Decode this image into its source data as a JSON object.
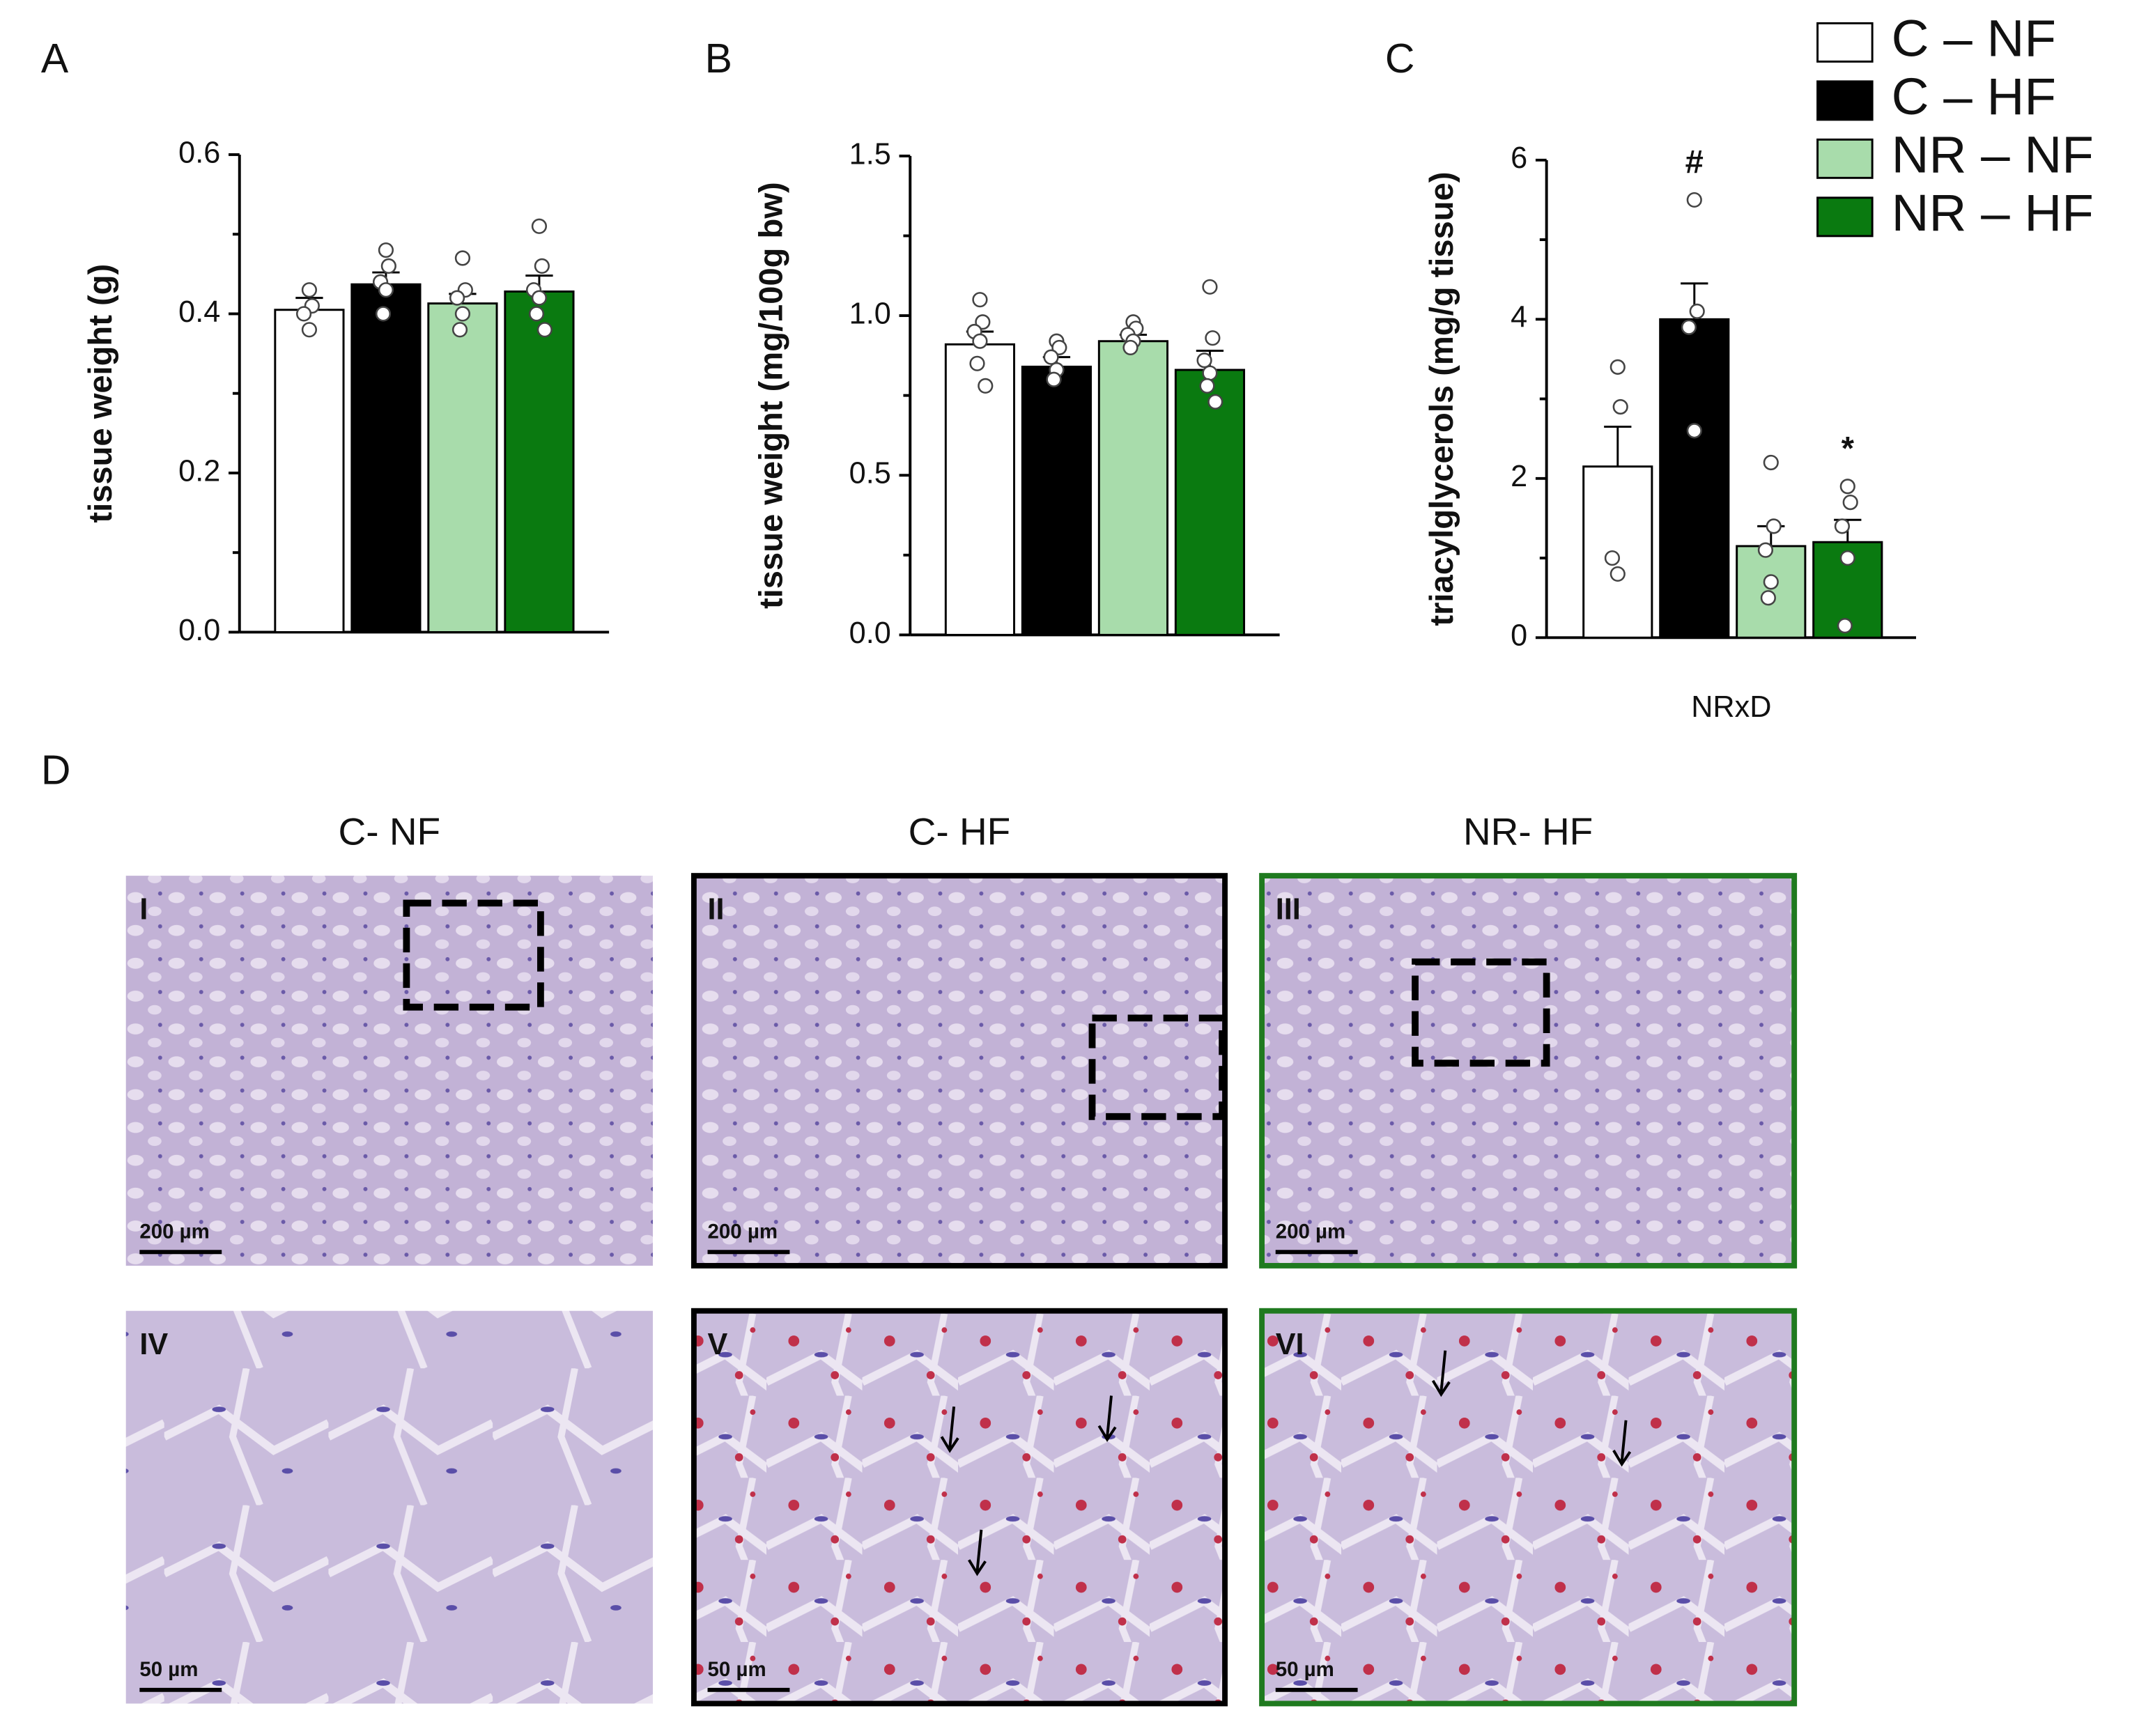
{
  "chart_data": [
    {
      "type": "bar",
      "panel": "A",
      "ylabel": "tissue weight (g)",
      "ylim": [
        0,
        0.6
      ],
      "yticks": [
        {
          "value": 0,
          "label": "0.0"
        },
        0.2,
        0.4,
        0.6
      ],
      "series": [
        {
          "color": "#ffffff",
          "values": [
            0.405
          ],
          "errors": [
            0.015
          ],
          "points": [
            [
              0.43,
              0.41,
              0.4,
              0.38
            ]
          ]
        },
        {
          "color": "#000000",
          "values": [
            0.437
          ],
          "errors": [
            0.015
          ],
          "points": [
            [
              0.48,
              0.46,
              0.44,
              0.43,
              0.4
            ]
          ]
        },
        {
          "color": "#a8dcab",
          "values": [
            0.413
          ],
          "errors": [
            0.012
          ],
          "points": [
            [
              0.47,
              0.43,
              0.42,
              0.4,
              0.38
            ]
          ]
        },
        {
          "color": "#0a7a10",
          "values": [
            0.428
          ],
          "errors": [
            0.02
          ],
          "points": [
            [
              0.51,
              0.46,
              0.43,
              0.42,
              0.4,
              0.38
            ]
          ]
        }
      ]
    },
    {
      "type": "bar",
      "panel": "B",
      "ylabel": "tissue weight (mg/100g bw)",
      "ylim": [
        0,
        1.5
      ],
      "yticks": [
        {
          "value": 0,
          "label": "0.0"
        },
        0.5,
        {
          "value": 1,
          "label": "1.0"
        },
        1.5
      ],
      "series": [
        {
          "color": "#ffffff",
          "values": [
            0.91
          ],
          "errors": [
            0.04
          ],
          "points": [
            [
              1.05,
              0.98,
              0.95,
              0.92,
              0.85,
              0.78
            ]
          ]
        },
        {
          "color": "#000000",
          "values": [
            0.84
          ],
          "errors": [
            0.03
          ],
          "points": [
            [
              0.92,
              0.9,
              0.87,
              0.83,
              0.8
            ]
          ]
        },
        {
          "color": "#a8dcab",
          "values": [
            0.92
          ],
          "errors": [
            0.02
          ],
          "points": [
            [
              0.98,
              0.96,
              0.94,
              0.92,
              0.9
            ]
          ]
        },
        {
          "color": "#0a7a10",
          "values": [
            0.83
          ],
          "errors": [
            0.06
          ],
          "points": [
            [
              1.09,
              0.93,
              0.86,
              0.82,
              0.78,
              0.73
            ]
          ]
        }
      ]
    },
    {
      "type": "bar",
      "panel": "C",
      "ylabel": "triacylglycerols (mg/g tissue)",
      "xlabel": "NRxD",
      "ylim": [
        0,
        6
      ],
      "yticks": [
        0,
        2,
        4,
        6
      ],
      "series": [
        {
          "name": "C – NF",
          "color": "#ffffff",
          "values": [
            2.15
          ],
          "errors": [
            0.5
          ],
          "points": [
            [
              3.4,
              2.9,
              1.0,
              0.8
            ]
          ]
        },
        {
          "name": "C – HF",
          "color": "#000000",
          "values": [
            4.0
          ],
          "errors": [
            0.45
          ],
          "points": [
            [
              5.5,
              4.1,
              3.9,
              2.6
            ]
          ],
          "annotation": "#"
        },
        {
          "name": "NR – NF",
          "color": "#a8dcab",
          "values": [
            1.15
          ],
          "errors": [
            0.25
          ],
          "points": [
            [
              2.2,
              1.4,
              1.1,
              0.7,
              0.5
            ]
          ]
        },
        {
          "name": "NR – HF",
          "color": "#0a7a10",
          "values": [
            1.2
          ],
          "errors": [
            0.28
          ],
          "points": [
            [
              1.9,
              1.7,
              1.4,
              1.0,
              0.15
            ]
          ],
          "annotation": "*"
        }
      ]
    }
  ],
  "micrographs": {
    "panel": "D",
    "columns": [
      "C- NF",
      "C- HF",
      "NR- HF"
    ],
    "panels": [
      {
        "numeral": "I",
        "scale": "200 µm"
      },
      {
        "numeral": "II",
        "scale": "200 µm"
      },
      {
        "numeral": "III",
        "scale": "200 µm"
      },
      {
        "numeral": "IV",
        "scale": "50 µm"
      },
      {
        "numeral": "V",
        "scale": "50 µm"
      },
      {
        "numeral": "VI",
        "scale": "50 µm"
      }
    ]
  }
}
